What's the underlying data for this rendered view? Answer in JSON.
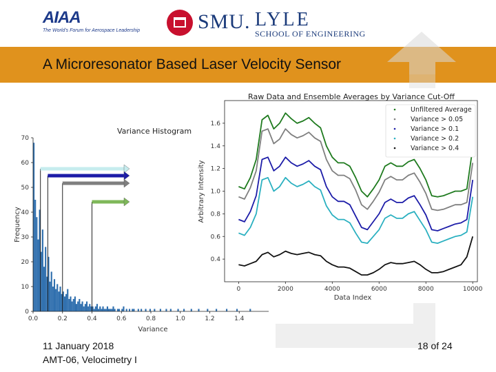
{
  "header": {
    "aiaa_logo_text": "AIAA",
    "aiaa_tagline": "The World's Forum for Aerospace Leadership",
    "smu_text": "SMU.",
    "lyle_text": "LYLE",
    "lyle_school": "SCHOOL OF ENGINEERING"
  },
  "slide": {
    "title": "A Microresonator Based Laser Velocity Sensor"
  },
  "footer": {
    "date": "11 January 2018",
    "session": "AMT-06, Velocimetry I",
    "page": "18 of 24"
  },
  "colors": {
    "title_band": "#e0921d",
    "histogram_bars": "#2f6fae",
    "series": [
      "#1e7a1e",
      "#7f7f7f",
      "#1c1ca8",
      "#2ab0c0",
      "#111111"
    ],
    "variance_arrows": [
      "#c6ecee",
      "#1c1ca8",
      "#7f7f7f",
      "#7fb85a"
    ]
  },
  "chart_data": [
    {
      "type": "bar",
      "title": "Variance Histogram",
      "xlabel": "Variance",
      "ylabel": "Frequency",
      "xlim": [
        0,
        1.6
      ],
      "ylim": [
        0,
        70
      ],
      "x_ticks": [
        "0.0",
        "0.2",
        "0.4",
        "0.6",
        "0.8",
        "1.0",
        "1.2",
        "1.4"
      ],
      "y_ticks": [
        "0",
        "10",
        "20",
        "30",
        "40",
        "50",
        "60",
        "70"
      ],
      "bin_width": 0.01,
      "values": [
        68,
        45,
        38,
        29,
        41,
        24,
        33,
        18,
        26,
        14,
        22,
        12,
        16,
        10,
        13,
        9,
        11,
        8,
        10,
        7,
        8,
        6,
        7,
        9,
        5,
        6,
        4,
        5,
        6,
        3,
        4,
        5,
        3,
        4,
        2,
        3,
        4,
        2,
        3,
        2,
        2,
        1,
        2,
        3,
        1,
        2,
        1,
        2,
        1,
        1,
        2,
        1,
        1,
        1,
        2,
        1,
        0,
        1,
        1,
        0,
        1,
        2,
        0,
        1,
        0,
        1,
        0,
        1,
        1,
        0,
        0,
        1,
        0,
        1,
        0,
        0,
        1,
        0,
        0,
        1,
        0,
        0,
        1,
        0,
        0,
        0,
        1,
        0,
        0,
        0,
        1,
        0,
        0,
        1,
        0,
        0,
        0,
        0,
        1,
        0,
        0,
        0,
        1,
        0,
        0,
        0,
        0,
        1,
        0,
        0,
        0,
        0,
        1,
        0,
        0,
        0,
        0,
        0,
        1,
        0,
        0,
        0,
        0,
        0,
        1,
        0,
        0,
        0,
        0,
        0,
        0,
        1,
        0,
        0,
        0,
        0,
        0,
        0,
        1,
        0,
        0,
        0,
        0,
        0,
        0,
        0,
        0,
        1,
        0,
        0
      ],
      "cutoff_markers": [
        0.05,
        0.1,
        0.2,
        0.4
      ],
      "grid": false
    },
    {
      "type": "line",
      "title": "Raw Data and Ensemble Averages by Variance Cut-Off",
      "xlabel": "Data Index",
      "ylabel": "Arbitrary Intensity",
      "xlim": [
        -600,
        10200
      ],
      "ylim": [
        0.2,
        1.8
      ],
      "x_ticks": [
        "0",
        "2000",
        "4000",
        "6000",
        "8000",
        "10000"
      ],
      "y_ticks": [
        "0.4",
        "0.6",
        "0.8",
        "1.0",
        "1.2",
        "1.4",
        "1.6"
      ],
      "legend_position": "top-right",
      "grid": false,
      "x": [
        0,
        250,
        500,
        750,
        1000,
        1250,
        1500,
        1750,
        2000,
        2250,
        2500,
        2750,
        3000,
        3250,
        3500,
        3750,
        4000,
        4250,
        4500,
        4750,
        5000,
        5250,
        5500,
        5750,
        6000,
        6250,
        6500,
        6750,
        7000,
        7250,
        7500,
        7750,
        8000,
        8250,
        8500,
        8750,
        9000,
        9250,
        9500,
        9750,
        10000
      ],
      "series": [
        {
          "name": "Unfiltered Average",
          "values": [
            1.04,
            1.02,
            1.12,
            1.28,
            1.63,
            1.67,
            1.55,
            1.6,
            1.69,
            1.64,
            1.6,
            1.62,
            1.65,
            1.6,
            1.56,
            1.4,
            1.3,
            1.25,
            1.25,
            1.22,
            1.12,
            1.0,
            0.95,
            1.02,
            1.1,
            1.22,
            1.25,
            1.22,
            1.22,
            1.26,
            1.28,
            1.2,
            1.1,
            0.96,
            0.95,
            0.96,
            0.98,
            1.0,
            1.0,
            1.02,
            1.38
          ]
        },
        {
          "name": "Variance > 0.05",
          "values": [
            0.95,
            0.93,
            1.03,
            1.18,
            1.53,
            1.55,
            1.42,
            1.46,
            1.55,
            1.5,
            1.47,
            1.49,
            1.52,
            1.47,
            1.44,
            1.28,
            1.18,
            1.14,
            1.14,
            1.11,
            1.01,
            0.88,
            0.84,
            0.91,
            0.99,
            1.1,
            1.13,
            1.1,
            1.1,
            1.14,
            1.16,
            1.08,
            0.98,
            0.84,
            0.83,
            0.84,
            0.86,
            0.88,
            0.88,
            0.9,
            1.25
          ]
        },
        {
          "name": "Variance > 0.1",
          "values": [
            0.75,
            0.73,
            0.82,
            0.96,
            1.28,
            1.3,
            1.18,
            1.22,
            1.3,
            1.25,
            1.22,
            1.24,
            1.27,
            1.22,
            1.19,
            1.04,
            0.95,
            0.91,
            0.91,
            0.88,
            0.78,
            0.68,
            0.66,
            0.73,
            0.8,
            0.9,
            0.93,
            0.9,
            0.9,
            0.94,
            0.96,
            0.88,
            0.79,
            0.66,
            0.65,
            0.67,
            0.69,
            0.71,
            0.72,
            0.75,
            1.1
          ]
        },
        {
          "name": "Variance > 0.2",
          "values": [
            0.63,
            0.61,
            0.68,
            0.8,
            1.1,
            1.12,
            1.0,
            1.04,
            1.12,
            1.07,
            1.04,
            1.06,
            1.09,
            1.04,
            1.01,
            0.87,
            0.79,
            0.75,
            0.75,
            0.72,
            0.63,
            0.55,
            0.54,
            0.6,
            0.66,
            0.76,
            0.79,
            0.76,
            0.76,
            0.8,
            0.82,
            0.74,
            0.66,
            0.55,
            0.54,
            0.56,
            0.58,
            0.6,
            0.61,
            0.64,
            0.95
          ]
        },
        {
          "name": "Variance > 0.4",
          "values": [
            0.35,
            0.34,
            0.36,
            0.38,
            0.44,
            0.46,
            0.42,
            0.44,
            0.47,
            0.45,
            0.44,
            0.45,
            0.46,
            0.44,
            0.43,
            0.38,
            0.35,
            0.33,
            0.33,
            0.32,
            0.29,
            0.26,
            0.26,
            0.28,
            0.31,
            0.35,
            0.37,
            0.36,
            0.36,
            0.37,
            0.38,
            0.35,
            0.31,
            0.28,
            0.28,
            0.29,
            0.31,
            0.33,
            0.35,
            0.42,
            0.6
          ]
        }
      ]
    }
  ]
}
